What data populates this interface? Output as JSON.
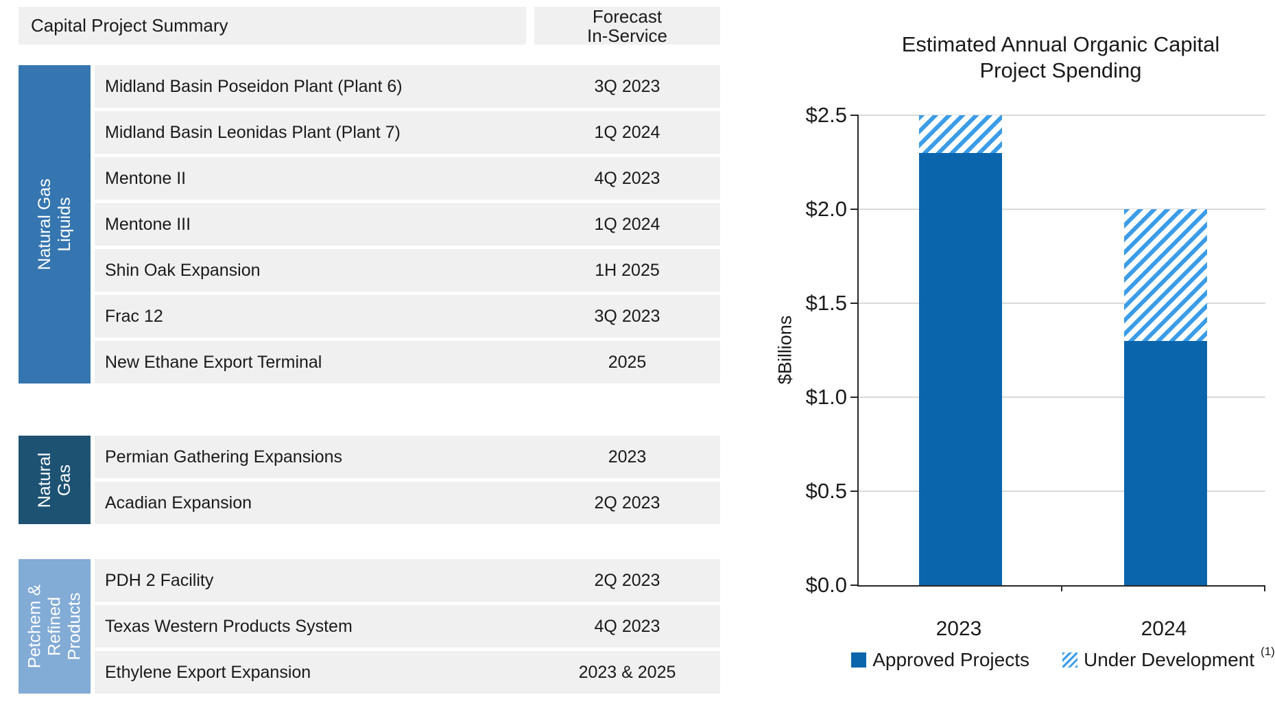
{
  "header": {
    "title": "Capital Project Summary",
    "forecast_col": [
      "Forecast",
      "In-Service"
    ]
  },
  "sections": [
    {
      "label_lines": [
        "Natural Gas",
        "Liquids"
      ],
      "color": "#3576b0",
      "rows": [
        {
          "name": "Midland Basin Poseidon Plant (Plant 6)",
          "forecast": "3Q 2023"
        },
        {
          "name": "Midland Basin Leonidas Plant (Plant 7)",
          "forecast": "1Q 2024"
        },
        {
          "name": "Mentone II",
          "forecast": "4Q 2023"
        },
        {
          "name": "Mentone III",
          "forecast": "1Q 2024"
        },
        {
          "name": "Shin Oak Expansion",
          "forecast": "1H 2025"
        },
        {
          "name": "Frac 12",
          "forecast": "3Q 2023"
        },
        {
          "name": "New Ethane Export Terminal",
          "forecast": "2025"
        }
      ]
    },
    {
      "label_lines": [
        "Natural",
        "Gas"
      ],
      "color": "#1d5273",
      "rows": [
        {
          "name": "Permian Gathering Expansions",
          "forecast": "2023"
        },
        {
          "name": "Acadian Expansion",
          "forecast": "2Q 2023"
        }
      ]
    },
    {
      "label_lines": [
        "Petchem &",
        "Refined",
        "Products"
      ],
      "color": "#82abd6",
      "rows": [
        {
          "name": "PDH 2 Facility",
          "forecast": "2Q 2023"
        },
        {
          "name": "Texas Western Products System",
          "forecast": "4Q 2023"
        },
        {
          "name": "Ethylene Export Expansion",
          "forecast": "2023 & 2025"
        }
      ]
    }
  ],
  "chart_data": {
    "type": "bar",
    "stacked": true,
    "title_lines": [
      "Estimated Annual Organic Capital",
      "Project Spending"
    ],
    "ylabel": "$Billions",
    "categories": [
      "2023",
      "2024"
    ],
    "series": [
      {
        "name": "Approved Projects",
        "values": [
          2.3,
          1.3
        ],
        "style": "solid",
        "color": "#0b65ad"
      },
      {
        "name": "Under Development",
        "footnote_marker": "(1)",
        "values": [
          0.2,
          0.7
        ],
        "style": "hatched",
        "color": "#3b9ce8"
      }
    ],
    "ylim": [
      0,
      2.5
    ],
    "ytick_labels": [
      "$0.0",
      "$0.5",
      "$1.0",
      "$1.5",
      "$2.0",
      "$2.5"
    ],
    "grid": true,
    "legend_position": "bottom"
  }
}
